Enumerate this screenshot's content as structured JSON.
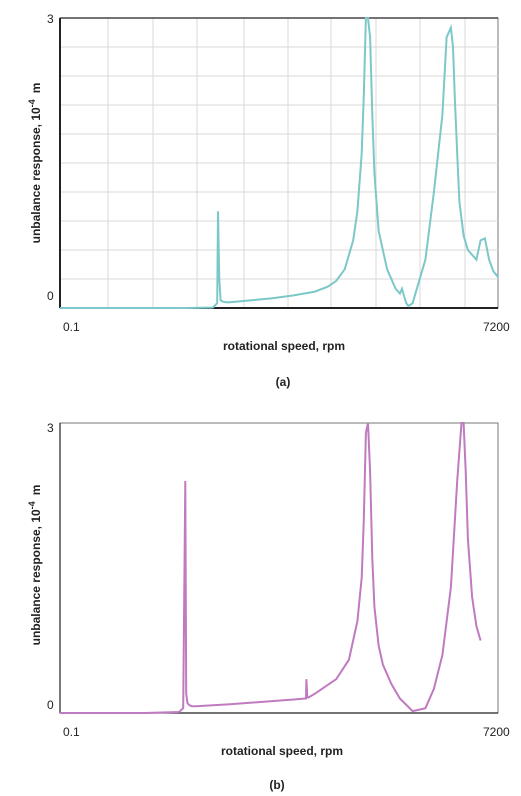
{
  "chart_data": [
    {
      "type": "line",
      "panel_label": "(a)",
      "xlabel": "rotational speed, rpm",
      "ylabel": "unbalance response, 10",
      "ylabel_exponent": "-4",
      "ylabel_unit": "m",
      "x_tick_labels": [
        "0.1",
        "7200"
      ],
      "y_tick_labels": [
        "0",
        "3"
      ],
      "xlim": [
        0,
        1
      ],
      "ylim": [
        0,
        3
      ],
      "grid": true,
      "line_color": "#7cc8c8",
      "series": [
        {
          "x": [
            0,
            0.1,
            0.2,
            0.3,
            0.36,
            0.37,
            0.372,
            0.375,
            0.378,
            0.381,
            0.385,
            0.39,
            0.4,
            0.45,
            0.5,
            0.55,
            0.6,
            0.63,
            0.65,
            0.67,
            0.69,
            0.7,
            0.71,
            0.715,
            0.72,
            0.725,
            0.73,
            0.735,
            0.74,
            0.75,
            0.77,
            0.79,
            0.8,
            0.805,
            0.81,
            0.815,
            0.82,
            0.83,
            0.86,
            0.88,
            0.9,
            0.91,
            0.92,
            0.925,
            0.93,
            0.935,
            0.94,
            0.95,
            0.96,
            0.97,
            0.98,
            0.99,
            1.0,
            1.01,
            1.02,
            1.035
          ],
          "y": [
            0,
            0,
            0,
            0,
            0.005,
            0.05,
            1.0,
            0.3,
            0.08,
            0.07,
            0.065,
            0.06,
            0.06,
            0.08,
            0.1,
            0.13,
            0.17,
            0.22,
            0.28,
            0.4,
            0.7,
            1.0,
            1.6,
            2.2,
            3.0,
            3.0,
            2.8,
            2.0,
            1.4,
            0.8,
            0.4,
            0.2,
            0.15,
            0.2,
            0.12,
            0.05,
            0.02,
            0.05,
            0.5,
            1.2,
            2.0,
            2.8,
            2.9,
            2.7,
            2.1,
            1.6,
            1.1,
            0.75,
            0.6,
            0.55,
            0.5,
            0.7,
            0.72,
            0.5,
            0.38,
            0.32
          ]
        }
      ]
    },
    {
      "type": "line",
      "panel_label": "(b)",
      "xlabel": "rotational speed, rpm",
      "ylabel": "unbalance response, 10",
      "ylabel_exponent": "-4",
      "ylabel_unit": "m",
      "x_tick_labels": [
        "0.1",
        "7200"
      ],
      "y_tick_labels": [
        "0",
        "3"
      ],
      "xlim": [
        0,
        1
      ],
      "ylim": [
        0,
        3
      ],
      "grid": true,
      "line_color": "#c07ac0",
      "series": [
        {
          "x": [
            0,
            0.1,
            0.2,
            0.28,
            0.29,
            0.295,
            0.297,
            0.3,
            0.305,
            0.31,
            0.32,
            0.4,
            0.55,
            0.579,
            0.58,
            0.582,
            0.585,
            0.6,
            0.65,
            0.68,
            0.7,
            0.71,
            0.715,
            0.72,
            0.725,
            0.73,
            0.735,
            0.74,
            0.75,
            0.76,
            0.765,
            0.77,
            0.78,
            0.8,
            0.83,
            0.86,
            0.88,
            0.9,
            0.92,
            0.935,
            0.945,
            0.95,
            0.955,
            0.96,
            0.97,
            0.98,
            0.99
          ],
          "y": [
            0,
            0,
            0,
            0.01,
            0.05,
            2.4,
            0.2,
            0.1,
            0.08,
            0.07,
            0.07,
            0.09,
            0.14,
            0.15,
            0.35,
            0.16,
            0.16,
            0.2,
            0.35,
            0.55,
            0.95,
            1.4,
            2.0,
            2.9,
            3.0,
            2.5,
            1.6,
            1.1,
            0.7,
            0.5,
            0.45,
            0.4,
            0.3,
            0.15,
            0.02,
            0.05,
            0.25,
            0.6,
            1.3,
            2.4,
            3.0,
            3.0,
            2.5,
            1.8,
            1.2,
            0.9,
            0.75
          ]
        }
      ]
    }
  ]
}
